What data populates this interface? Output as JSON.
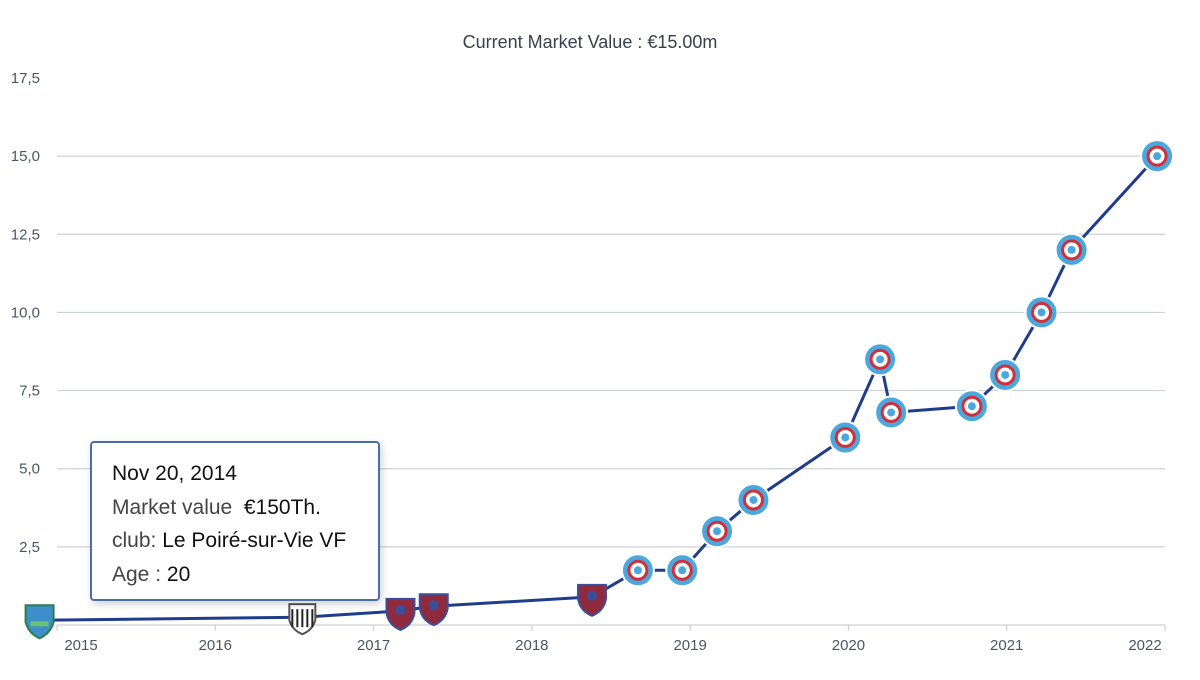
{
  "chart_data": {
    "type": "line",
    "title": "Current Market Value : €15.00m",
    "xlabel": "",
    "ylabel": "",
    "y_unit": "€m",
    "ylim": [
      0,
      17.5
    ],
    "xlim": [
      2015,
      2022
    ],
    "yticks": [
      "2,5",
      "5,0",
      "7,5",
      "10,0",
      "12,5",
      "15,0",
      "17,5"
    ],
    "ytick_values": [
      2.5,
      5.0,
      7.5,
      10.0,
      12.5,
      15.0,
      17.5
    ],
    "xticks": [
      "2015",
      "2016",
      "2017",
      "2018",
      "2019",
      "2020",
      "2021",
      "2022"
    ],
    "xtick_values": [
      2015,
      2016,
      2017,
      2018,
      2019,
      2020,
      2021,
      2022
    ],
    "grid": true,
    "colors": {
      "line": "#1f3d8a",
      "grid": "#cdd1d8",
      "club_a": "#4aa8de",
      "club_b": "#8f2a3f",
      "club_c": "#555555",
      "club_d": "#3e8fc9"
    },
    "series": [
      {
        "name": "Market value",
        "points": [
          {
            "x": 2014.89,
            "y": 0.15,
            "club": "club_d"
          },
          {
            "x": 2016.55,
            "y": 0.25,
            "club": "club_c"
          },
          {
            "x": 2017.17,
            "y": 0.45,
            "club": "club_b"
          },
          {
            "x": 2017.38,
            "y": 0.6,
            "club": "club_b"
          },
          {
            "x": 2018.38,
            "y": 0.9,
            "club": "club_b"
          },
          {
            "x": 2018.67,
            "y": 1.75,
            "club": "club_a"
          },
          {
            "x": 2018.95,
            "y": 1.75,
            "club": "club_a"
          },
          {
            "x": 2019.17,
            "y": 3.0,
            "club": "club_a"
          },
          {
            "x": 2019.4,
            "y": 4.0,
            "club": "club_a"
          },
          {
            "x": 2019.98,
            "y": 6.0,
            "club": "club_a"
          },
          {
            "x": 2020.2,
            "y": 8.5,
            "club": "club_a"
          },
          {
            "x": 2020.27,
            "y": 6.8,
            "club": "club_a"
          },
          {
            "x": 2020.78,
            "y": 7.0,
            "club": "club_a"
          },
          {
            "x": 2020.99,
            "y": 8.0,
            "club": "club_a"
          },
          {
            "x": 2021.22,
            "y": 10.0,
            "club": "club_a"
          },
          {
            "x": 2021.41,
            "y": 12.0,
            "club": "club_a"
          },
          {
            "x": 2021.95,
            "y": 15.0,
            "club": "club_a"
          }
        ]
      }
    ],
    "tooltip": {
      "date": "Nov 20, 2014",
      "value_label": "Market value",
      "value": "€150Th.",
      "club_label": "club:",
      "club": "Le Poiré-sur-Vie VF",
      "age_label": "Age :",
      "age": "20"
    }
  }
}
